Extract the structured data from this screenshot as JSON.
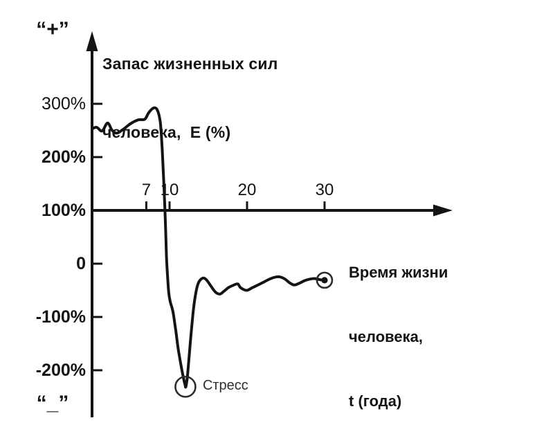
{
  "colors": {
    "ink": "#141414",
    "marker": "#2b2b2b",
    "background": "#ffffff"
  },
  "title": {
    "line1": "Запас жизненных сил",
    "line2": "человека,  E (%)"
  },
  "y_axis": {
    "plus_label": "“+”",
    "minus_label": "“_”",
    "ticks": [
      {
        "label": "300%",
        "value": 300,
        "bold": false
      },
      {
        "label": "200%",
        "value": 200,
        "bold": true
      },
      {
        "label": "100%",
        "value": 100,
        "bold": true
      },
      {
        "label": "0",
        "value": 0,
        "bold": true
      },
      {
        "label": "-100%",
        "value": -100,
        "bold": true
      },
      {
        "label": "-200%",
        "value": -200,
        "bold": true
      }
    ]
  },
  "x_axis": {
    "label": {
      "line1": "Время жизни",
      "line2": "человека,",
      "line3": "t (года)"
    },
    "ticks": [
      {
        "label": "7",
        "value": 7
      },
      {
        "label": "10",
        "value": 10
      },
      {
        "label": "20",
        "value": 20
      },
      {
        "label": "30",
        "value": 30
      }
    ]
  },
  "annotations": {
    "stress": {
      "label": "Стресс",
      "t": 12.05,
      "E": -231,
      "marker": "open-circle"
    },
    "end_point": {
      "t": 30,
      "E": -31,
      "marker": "circled-dot"
    }
  },
  "chart_data": {
    "type": "line",
    "title": "Запас жизненных сил человека, E (%)",
    "xlabel": "Время жизни человека, t (года)",
    "ylabel": "E (%)",
    "x_ticks": [
      7,
      10,
      20,
      30
    ],
    "y_ticks_percent": [
      300,
      200,
      100,
      0,
      -100,
      -200
    ],
    "xlim": [
      0,
      44
    ],
    "ylim_percent": [
      -300,
      330
    ],
    "grid": false,
    "axis_cross_E_percent": 100,
    "series": [
      {
        "name": "Запас жизненных сил",
        "points_t_E": [
          [
            0,
            253
          ],
          [
            0.6,
            256
          ],
          [
            1.3,
            249
          ],
          [
            2.0,
            264
          ],
          [
            2.6,
            250
          ],
          [
            3.2,
            245
          ],
          [
            4.0,
            252
          ],
          [
            5.0,
            263
          ],
          [
            6.0,
            270
          ],
          [
            6.8,
            271
          ],
          [
            7.3,
            283
          ],
          [
            7.9,
            292
          ],
          [
            8.4,
            289
          ],
          [
            8.8,
            266
          ],
          [
            9.05,
            215
          ],
          [
            9.25,
            155
          ],
          [
            9.45,
            85
          ],
          [
            9.6,
            15
          ],
          [
            9.75,
            -25
          ],
          [
            9.9,
            -55
          ],
          [
            10.1,
            -72
          ],
          [
            10.3,
            -82
          ],
          [
            10.5,
            -95
          ],
          [
            10.8,
            -125
          ],
          [
            11.1,
            -158
          ],
          [
            11.45,
            -188
          ],
          [
            11.8,
            -215
          ],
          [
            12.0,
            -227
          ],
          [
            12.1,
            -231
          ],
          [
            12.3,
            -212
          ],
          [
            12.55,
            -170
          ],
          [
            12.8,
            -128
          ],
          [
            13.1,
            -84
          ],
          [
            13.4,
            -54
          ],
          [
            13.7,
            -37
          ],
          [
            14.0,
            -30
          ],
          [
            14.4,
            -27
          ],
          [
            14.8,
            -31
          ],
          [
            15.2,
            -39
          ],
          [
            15.9,
            -53
          ],
          [
            16.5,
            -57
          ],
          [
            17.0,
            -52
          ],
          [
            17.6,
            -45
          ],
          [
            18.3,
            -40
          ],
          [
            18.8,
            -38
          ],
          [
            19.1,
            -44
          ],
          [
            19.5,
            -48
          ],
          [
            20.0,
            -50
          ],
          [
            20.7,
            -45
          ],
          [
            21.4,
            -40
          ],
          [
            22.1,
            -35
          ],
          [
            22.9,
            -29
          ],
          [
            23.7,
            -25
          ],
          [
            24.3,
            -25
          ],
          [
            24.9,
            -29
          ],
          [
            25.5,
            -36
          ],
          [
            26.1,
            -40
          ],
          [
            26.7,
            -37
          ],
          [
            27.4,
            -32
          ],
          [
            28.1,
            -29
          ],
          [
            28.8,
            -28
          ],
          [
            29.4,
            -30
          ],
          [
            30.0,
            -31
          ]
        ]
      }
    ],
    "annotations": [
      {
        "label": "Стресс",
        "t": 12.05,
        "E": -231,
        "marker": "open-circle"
      },
      {
        "label": "",
        "t": 30,
        "E": -31,
        "marker": "circled-dot"
      }
    ]
  }
}
